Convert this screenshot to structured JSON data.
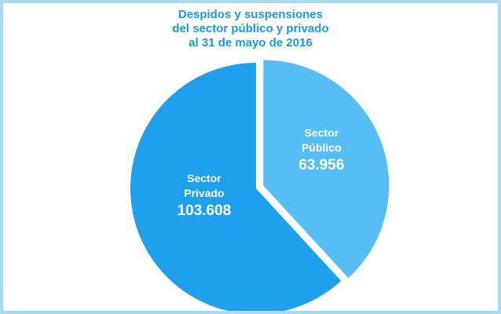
{
  "chart_data": {
    "type": "pie",
    "title": [
      "Despidos y suspensiones",
      "del sector público y privado",
      "al 31 de mayo de 2016"
    ],
    "categories": [
      "Sector Público",
      "Sector Privado"
    ],
    "values": [
      63956,
      103608
    ],
    "value_labels": [
      "63.956",
      "103.608"
    ],
    "colors": [
      "#56bdf5",
      "#1ea0ec"
    ]
  }
}
